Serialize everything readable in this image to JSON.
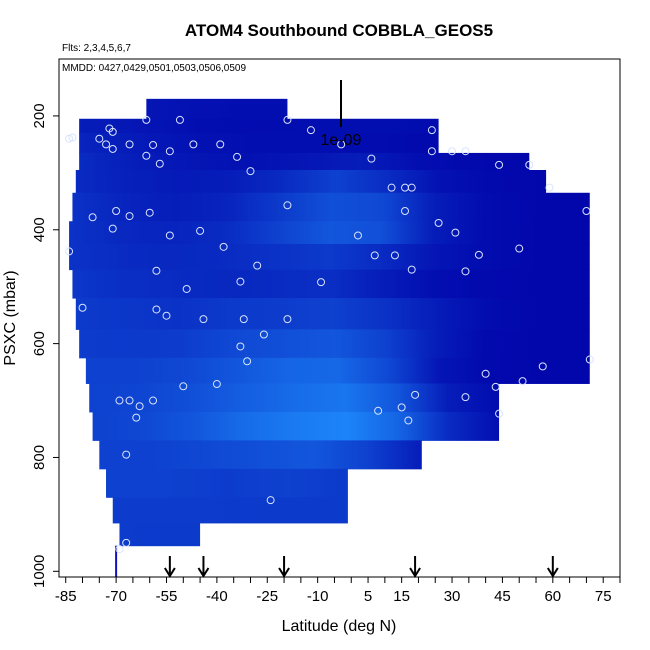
{
  "chart_data": {
    "type": "heatmap",
    "title": "ATOM4 Southbound COBBLA_GEOS5",
    "subtitle_flights": "Flts: 2,3,4,5,6,7",
    "subtitle_dates": "MMDD: 0427,0429,0501,0503,0506,0509",
    "xlabel": "Latitude (deg N)",
    "ylabel": "PSXC (mbar)",
    "xlim": [
      -87,
      80
    ],
    "ylim": [
      1010,
      100
    ],
    "y_reversed": true,
    "x_ticks": [
      -85,
      -70,
      -55,
      -40,
      -25,
      -10,
      5,
      15,
      30,
      45,
      60,
      75
    ],
    "y_ticks": [
      200,
      400,
      600,
      800,
      1000
    ],
    "scale_label": "1e-09",
    "grid": false,
    "colorscale": [
      "#0000a8",
      "#1e90ff"
    ],
    "curtain_rows": [
      {
        "p0": 170,
        "p1": 205,
        "x0": -61,
        "x1": -19,
        "vals": [
          0.15,
          0.12,
          0.1,
          0.1
        ]
      },
      {
        "p0": 205,
        "p1": 230,
        "x0": -81,
        "x1": 26,
        "vals": [
          0.2,
          0.15,
          0.1,
          0.08,
          0.1,
          0.1,
          0.08
        ]
      },
      {
        "p0": 230,
        "p1": 265,
        "x0": -81,
        "x1": 26,
        "vals": [
          0.25,
          0.18,
          0.12,
          0.1,
          0.1,
          0.08,
          0.06
        ]
      },
      {
        "p0": 265,
        "p1": 295,
        "x0": -81,
        "x1": 53,
        "vals": [
          0.3,
          0.2,
          0.15,
          0.12,
          0.15,
          0.2,
          0.1,
          0.06,
          0.05
        ]
      },
      {
        "p0": 295,
        "p1": 335,
        "x0": -82,
        "x1": 58,
        "vals": [
          0.3,
          0.22,
          0.18,
          0.2,
          0.3,
          0.45,
          0.3,
          0.12,
          0.06,
          0.05
        ]
      },
      {
        "p0": 335,
        "p1": 385,
        "x0": -83,
        "x1": 71,
        "vals": [
          0.35,
          0.25,
          0.2,
          0.25,
          0.4,
          0.55,
          0.5,
          0.2,
          0.08,
          0.05,
          0.05
        ]
      },
      {
        "p0": 385,
        "p1": 425,
        "x0": -84,
        "x1": 71,
        "vals": [
          0.35,
          0.28,
          0.25,
          0.3,
          0.45,
          0.6,
          0.55,
          0.2,
          0.08,
          0.05,
          0.05
        ]
      },
      {
        "p0": 425,
        "p1": 470,
        "x0": -84,
        "x1": 71,
        "vals": [
          0.35,
          0.3,
          0.28,
          0.3,
          0.35,
          0.4,
          0.3,
          0.15,
          0.08,
          0.05,
          0.05
        ]
      },
      {
        "p0": 470,
        "p1": 520,
        "x0": -83,
        "x1": 71,
        "vals": [
          0.38,
          0.32,
          0.3,
          0.28,
          0.3,
          0.32,
          0.2,
          0.1,
          0.06,
          0.05,
          0.05
        ]
      },
      {
        "p0": 520,
        "p1": 575,
        "x0": -82,
        "x1": 71,
        "vals": [
          0.4,
          0.38,
          0.35,
          0.4,
          0.42,
          0.45,
          0.35,
          0.2,
          0.08,
          0.05,
          0.05
        ]
      },
      {
        "p0": 575,
        "p1": 625,
        "x0": -81,
        "x1": 71,
        "vals": [
          0.42,
          0.4,
          0.42,
          0.5,
          0.55,
          0.6,
          0.45,
          0.2,
          0.06,
          0.05,
          0.05
        ]
      },
      {
        "p0": 625,
        "p1": 670,
        "x0": -79,
        "x1": 71,
        "vals": [
          0.45,
          0.45,
          0.5,
          0.6,
          0.7,
          0.72,
          0.5,
          0.15,
          0.06,
          0.05,
          0.05
        ]
      },
      {
        "p0": 670,
        "p1": 720,
        "x0": -78,
        "x1": 44,
        "vals": [
          0.45,
          0.48,
          0.55,
          0.65,
          0.75,
          0.82,
          0.6,
          0.2,
          0.08
        ]
      },
      {
        "p0": 720,
        "p1": 770,
        "x0": -77,
        "x1": 44,
        "vals": [
          0.45,
          0.5,
          0.6,
          0.75,
          0.85,
          0.92,
          0.7,
          0.3,
          0.1
        ]
      },
      {
        "p0": 770,
        "p1": 820,
        "x0": -75,
        "x1": 21,
        "vals": [
          0.45,
          0.45,
          0.5,
          0.55,
          0.6,
          0.45,
          0.2
        ]
      },
      {
        "p0": 820,
        "p1": 870,
        "x0": -73,
        "x1": -1,
        "vals": [
          0.45,
          0.45,
          0.42,
          0.45,
          0.4
        ]
      },
      {
        "p0": 870,
        "p1": 915,
        "x0": -71,
        "x1": -1,
        "vals": [
          0.42,
          0.42,
          0.4,
          0.4
        ]
      },
      {
        "p0": 915,
        "p1": 955,
        "x0": -69,
        "x1": -45,
        "vals": [
          0.42,
          0.4,
          0.4
        ]
      }
    ],
    "obs_points": [
      [
        -61,
        207
      ],
      [
        -51,
        207
      ],
      [
        -19,
        207
      ],
      [
        -72,
        222
      ],
      [
        -71,
        228
      ],
      [
        -83,
        238
      ],
      [
        -75,
        240
      ],
      [
        -12,
        225
      ],
      [
        -66,
        250
      ],
      [
        -59,
        251
      ],
      [
        -47,
        250
      ],
      [
        -39,
        250
      ],
      [
        -84,
        240
      ],
      [
        -73,
        250
      ],
      [
        -71,
        258
      ],
      [
        -54,
        262
      ],
      [
        -34,
        272
      ],
      [
        -61,
        270
      ],
      [
        -57,
        284
      ],
      [
        -30,
        297
      ],
      [
        -3,
        250
      ],
      [
        6,
        275
      ],
      [
        24,
        225
      ],
      [
        24,
        262
      ],
      [
        34,
        262
      ],
      [
        44,
        286
      ],
      [
        53,
        286
      ],
      [
        59,
        326
      ],
      [
        30,
        262
      ],
      [
        12,
        326
      ],
      [
        16,
        326
      ],
      [
        18,
        326
      ],
      [
        16,
        367
      ],
      [
        70,
        367
      ],
      [
        -70,
        367
      ],
      [
        -66,
        376
      ],
      [
        -60,
        370
      ],
      [
        -77,
        378
      ],
      [
        -71,
        398
      ],
      [
        -54,
        410
      ],
      [
        -45,
        402
      ],
      [
        -19,
        357
      ],
      [
        2,
        410
      ],
      [
        7,
        445
      ],
      [
        13,
        445
      ],
      [
        18,
        470
      ],
      [
        26,
        388
      ],
      [
        31,
        405
      ],
      [
        34,
        473
      ],
      [
        38,
        444
      ],
      [
        50,
        433
      ],
      [
        -38,
        430
      ],
      [
        -28,
        463
      ],
      [
        -9,
        492
      ],
      [
        -80,
        537
      ],
      [
        -58,
        472
      ],
      [
        -58,
        540
      ],
      [
        -49,
        504
      ],
      [
        -55,
        551
      ],
      [
        -44,
        557
      ],
      [
        -33,
        491
      ],
      [
        -32,
        557
      ],
      [
        -26,
        584
      ],
      [
        -19,
        557
      ],
      [
        -33,
        605
      ],
      [
        -31,
        631
      ],
      [
        -40,
        671
      ],
      [
        -50,
        675
      ],
      [
        -69,
        700
      ],
      [
        -66,
        700
      ],
      [
        -59,
        700
      ],
      [
        -63,
        710
      ],
      [
        -64,
        730
      ],
      [
        -67,
        795
      ],
      [
        40,
        653
      ],
      [
        34,
        694
      ],
      [
        51,
        666
      ],
      [
        43,
        676
      ],
      [
        57,
        640
      ],
      [
        44,
        723
      ],
      [
        8,
        718
      ],
      [
        15,
        712
      ],
      [
        17,
        735
      ],
      [
        19,
        690
      ],
      [
        -24,
        875
      ],
      [
        -67,
        950
      ],
      [
        -69,
        961
      ],
      [
        71,
        628
      ],
      [
        -84,
        438
      ]
    ],
    "arrow_lats": [
      -54,
      -44,
      -20,
      19,
      60
    ],
    "lat_marker": -70
  }
}
